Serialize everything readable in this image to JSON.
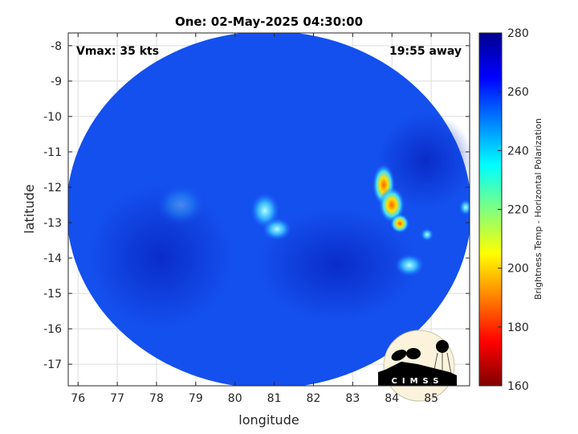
{
  "title": "One: 02-May-2025 04:30:00",
  "annotations": {
    "vmax": "Vmax: 35 kts",
    "time_away": "19:55 away"
  },
  "x_axis": {
    "label": "longitude",
    "range": [
      75.75,
      85.98
    ],
    "ticks": [
      76,
      77,
      78,
      79,
      80,
      81,
      82,
      83,
      84,
      85
    ]
  },
  "y_axis": {
    "label": "latitude",
    "range": [
      -17.61,
      -7.64
    ],
    "ticks": [
      -8,
      -9,
      -10,
      -11,
      -12,
      -13,
      -14,
      -15,
      -16,
      -17
    ]
  },
  "colorbar": {
    "label": "Brightness Temp - Horizontal Polarization",
    "range": [
      160,
      280
    ],
    "ticks": [
      280,
      260,
      240,
      220,
      200,
      180,
      160
    ],
    "colormap": "jet",
    "colors": [
      "#800000",
      "#ff0000",
      "#ff8000",
      "#ffff00",
      "#80ff80",
      "#00ffff",
      "#0080ff",
      "#0000ff",
      "#00008f"
    ]
  },
  "logo": {
    "text": "CIMSS"
  },
  "grid": true,
  "colors": {
    "background_swath": "#1450ee",
    "cold_core": "#ff4000"
  }
}
